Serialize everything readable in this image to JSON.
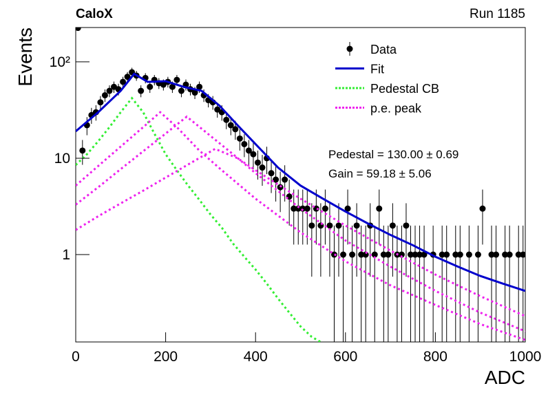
{
  "chart_data": {
    "type": "scatter",
    "title": "CaloX",
    "subtitle": "Run 1185",
    "x_label": "ADC",
    "y_label": "Events",
    "annotations": [
      "Pedestal = 130.00 ± 0.69",
      "Gain = 59.18 ± 5.06"
    ],
    "log_y": true,
    "xlim": [
      0,
      1000
    ],
    "xticks": [
      0,
      200,
      400,
      600,
      800,
      1000
    ],
    "ylim": [
      0.124,
      227
    ],
    "yticks": [
      1,
      10,
      {
        "value": 100,
        "label": "10²"
      }
    ],
    "legend": "top-right",
    "series": [
      {
        "name": "Data",
        "style": "points",
        "color": "#000000",
        "x": [
          5,
          15,
          25,
          35,
          45,
          55,
          65,
          75,
          85,
          95,
          105,
          115,
          125,
          135,
          145,
          155,
          165,
          175,
          185,
          195,
          205,
          215,
          225,
          235,
          245,
          255,
          265,
          275,
          285,
          295,
          305,
          315,
          325,
          335,
          345,
          355,
          365,
          375,
          385,
          395,
          405,
          415,
          425,
          435,
          445,
          455,
          465,
          475,
          485,
          495,
          505,
          515,
          525,
          535,
          545,
          555,
          565,
          575,
          585,
          595,
          605,
          615,
          625,
          635,
          645,
          655,
          665,
          675,
          685,
          695,
          705,
          715,
          725,
          735,
          745,
          755,
          765,
          775,
          785,
          795,
          805,
          815,
          825,
          835,
          845,
          855,
          865,
          875,
          885,
          895,
          905,
          915,
          925,
          935,
          945,
          955,
          965,
          975,
          985,
          995
        ],
        "values": [
          225,
          12,
          22,
          28,
          30,
          38,
          45,
          50,
          55,
          52,
          62,
          70,
          78,
          72,
          50,
          68,
          55,
          65,
          60,
          58,
          62,
          55,
          65,
          50,
          58,
          52,
          48,
          55,
          45,
          40,
          38,
          32,
          30,
          25,
          22,
          20,
          16,
          14,
          12,
          11,
          9,
          8,
          10,
          7,
          6,
          5,
          6,
          4,
          3,
          3,
          3,
          3,
          2,
          3,
          2,
          3,
          2,
          1,
          2,
          1,
          3,
          1,
          2,
          1,
          1,
          2,
          1,
          3,
          1,
          1,
          2,
          1,
          1,
          2,
          1,
          1,
          1,
          1,
          null,
          1,
          null,
          1,
          1,
          null,
          1,
          1,
          null,
          1,
          null,
          1,
          3,
          null,
          1,
          1,
          null,
          1,
          1,
          null,
          1,
          1
        ],
        "errors": [
          15,
          3.46,
          4.69,
          5.29,
          5.48,
          6.16,
          6.71,
          7.07,
          7.42,
          7.21,
          7.87,
          8.37,
          8.83,
          8.49,
          7.07,
          8.25,
          7.42,
          8.06,
          7.75,
          7.62,
          7.87,
          7.42,
          8.06,
          7.07,
          7.62,
          7.21,
          6.93,
          7.42,
          6.71,
          6.32,
          6.16,
          5.66,
          5.48,
          5,
          4.69,
          4.47,
          4,
          3.74,
          3.46,
          3.32,
          3,
          2.83,
          3.16,
          2.65,
          2.45,
          2.24,
          2.45,
          2,
          1.73,
          1.73,
          1.73,
          1.73,
          1.41,
          1.73,
          1.41,
          1.73,
          1.41,
          1,
          1.41,
          1,
          1.73,
          1,
          1.41,
          1,
          1,
          1.41,
          1,
          1.73,
          1,
          1,
          1.41,
          1,
          1,
          1.41,
          1,
          1,
          1,
          1,
          null,
          1,
          null,
          1,
          1,
          null,
          1,
          1,
          null,
          1,
          null,
          1,
          1.73,
          null,
          1,
          1,
          null,
          1,
          1,
          null,
          1,
          1
        ]
      },
      {
        "name": "Fit",
        "style": "solid",
        "color": "#0000cc",
        "x": [
          0,
          50,
          100,
          130,
          160,
          200,
          240,
          280,
          320,
          360,
          400,
          450,
          500,
          550,
          600,
          650,
          700,
          750,
          800,
          850,
          900,
          950,
          1000
        ],
        "values": [
          19,
          30,
          50,
          75,
          62,
          63,
          55,
          50,
          35,
          22,
          14,
          8,
          5.2,
          3.8,
          2.8,
          2.1,
          1.6,
          1.25,
          0.95,
          0.75,
          0.6,
          0.5,
          0.42
        ]
      },
      {
        "name": "Pedestal CB",
        "style": "dotted",
        "color": "#33ee33",
        "x": [
          0,
          25,
          50,
          75,
          100,
          125,
          150,
          175,
          200,
          225,
          250,
          275,
          300,
          325,
          350,
          375,
          400,
          425,
          450,
          475,
          500,
          525,
          550
        ],
        "values": [
          8.5,
          11,
          15,
          21,
          30,
          42,
          30,
          18,
          11,
          7.5,
          5.2,
          3.7,
          2.6,
          1.9,
          1.3,
          0.95,
          0.7,
          0.5,
          0.35,
          0.25,
          0.18,
          0.14,
          0.12
        ]
      },
      {
        "name": "p.e. peak",
        "style": "dotted",
        "color": "#ee22ee",
        "x": [
          0,
          50,
          100,
          150,
          188,
          225,
          275,
          325,
          400,
          500,
          600,
          700,
          800,
          900,
          1000
        ],
        "values": [
          5.2,
          8.3,
          13.2,
          21,
          30,
          21,
          12,
          7.5,
          3.8,
          1.7,
          0.85,
          0.48,
          0.3,
          0.19,
          0.13
        ]
      },
      {
        "style": "dotted",
        "color": "#ee22ee",
        "x": [
          0,
          50,
          100,
          150,
          200,
          247,
          300,
          350,
          400,
          500,
          600,
          700,
          800,
          900,
          1000
        ],
        "values": [
          3.3,
          5,
          7.7,
          11.8,
          18,
          27,
          17,
          11,
          7,
          3,
          1.4,
          0.75,
          0.42,
          0.25,
          0.16
        ]
      },
      {
        "style": "dotted",
        "color": "#ee22ee",
        "x": [
          0,
          50,
          100,
          150,
          200,
          250,
          310,
          360,
          400,
          500,
          600,
          700,
          800,
          900,
          1000
        ],
        "values": [
          1.8,
          2.5,
          3.4,
          4.6,
          6.3,
          8.6,
          12.5,
          10,
          7.5,
          3.8,
          2,
          1.1,
          0.62,
          0.37,
          0.23
        ]
      }
    ]
  }
}
